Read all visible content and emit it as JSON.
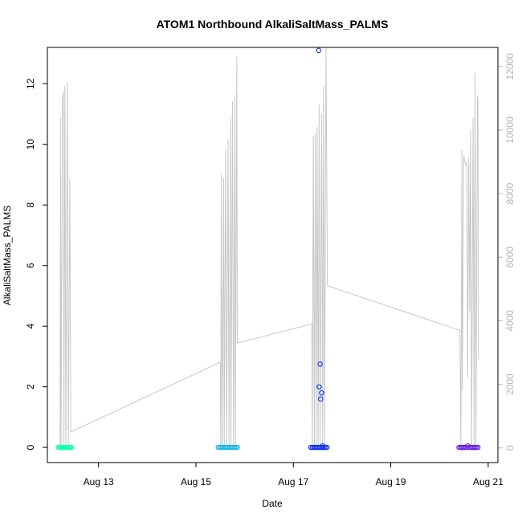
{
  "chart_data": {
    "type": "scatter",
    "title": "ATOM1 Northbound AlkaliSaltMass_PALMS",
    "xlabel": "Date",
    "ylabel": "AlkaliSaltMass_PALMS",
    "x_ticks": [
      "Aug 13",
      "Aug 15",
      "Aug 17",
      "Aug 19",
      "Aug 21"
    ],
    "x_tick_values": [
      13,
      15,
      17,
      19,
      21
    ],
    "xlim": [
      11.95,
      21.2
    ],
    "ylim": [
      -0.5,
      13.2
    ],
    "y_ticks": [
      0,
      2,
      4,
      6,
      8,
      10,
      12
    ],
    "y_right_ticks": [
      0,
      2000,
      4000,
      6000,
      8000,
      10000,
      12000
    ],
    "y_right_lim": [
      -460,
      12600
    ],
    "colors": {
      "line": "#c8c8c8",
      "right_axis": "#b4b4b4",
      "flight1": "#19ffb0",
      "flight2": "#19b4e6",
      "flight3": "#1432e6",
      "flight4": "#6a1ee6"
    },
    "secondary_line": {
      "name": "",
      "points": [
        [
          12.21,
          0
        ],
        [
          12.22,
          10400
        ],
        [
          12.23,
          0
        ],
        [
          12.26,
          11000
        ],
        [
          12.28,
          11200
        ],
        [
          12.29,
          0
        ],
        [
          12.31,
          11400
        ],
        [
          12.33,
          0
        ],
        [
          12.36,
          11500
        ],
        [
          12.38,
          0
        ],
        [
          12.41,
          8500
        ],
        [
          12.43,
          500
        ],
        [
          15.5,
          2700
        ],
        [
          15.51,
          0
        ],
        [
          15.52,
          8600
        ],
        [
          15.54,
          0
        ],
        [
          15.57,
          8500
        ],
        [
          15.58,
          0
        ],
        [
          15.61,
          9400
        ],
        [
          15.63,
          0
        ],
        [
          15.66,
          9700
        ],
        [
          15.68,
          0
        ],
        [
          15.71,
          10400
        ],
        [
          15.72,
          0
        ],
        [
          15.75,
          10900
        ],
        [
          15.77,
          0
        ],
        [
          15.8,
          11100
        ],
        [
          15.81,
          0
        ],
        [
          15.84,
          12300
        ],
        [
          15.85,
          3300
        ],
        [
          17.38,
          3900
        ],
        [
          17.39,
          0
        ],
        [
          17.41,
          9800
        ],
        [
          17.43,
          0
        ],
        [
          17.45,
          9900
        ],
        [
          17.47,
          0
        ],
        [
          17.49,
          10100
        ],
        [
          17.51,
          0
        ],
        [
          17.53,
          10800
        ],
        [
          17.55,
          0
        ],
        [
          17.58,
          10500
        ],
        [
          17.6,
          0
        ],
        [
          17.62,
          11400
        ],
        [
          17.64,
          0
        ],
        [
          17.67,
          12600
        ],
        [
          17.7,
          5100
        ],
        [
          20.42,
          3700
        ],
        [
          20.44,
          0
        ],
        [
          20.46,
          9400
        ],
        [
          20.47,
          1800
        ],
        [
          20.5,
          9200
        ],
        [
          20.52,
          9000
        ],
        [
          20.54,
          8900
        ],
        [
          20.56,
          9000
        ],
        [
          20.58,
          2200
        ],
        [
          20.6,
          9100
        ],
        [
          20.62,
          4300
        ],
        [
          20.64,
          10000
        ],
        [
          20.66,
          0
        ],
        [
          20.69,
          10400
        ],
        [
          20.71,
          0
        ],
        [
          20.73,
          11800
        ],
        [
          20.75,
          0
        ],
        [
          20.78,
          11100
        ],
        [
          20.79,
          10900
        ],
        [
          20.8,
          2800
        ]
      ]
    },
    "series": [
      {
        "flight": 1,
        "color": "#19ffb0",
        "x": [
          12.18,
          12.2,
          12.22,
          12.24,
          12.26,
          12.28,
          12.3,
          12.32,
          12.34,
          12.36,
          12.38,
          12.4,
          12.42,
          12.44
        ],
        "y": [
          0,
          0,
          0,
          0,
          0,
          0,
          0,
          0,
          0,
          0,
          0,
          0,
          0,
          0
        ]
      },
      {
        "flight": 2,
        "color": "#19b4e6",
        "x": [
          15.46,
          15.49,
          15.52,
          15.55,
          15.58,
          15.61,
          15.64,
          15.67,
          15.7,
          15.73,
          15.76,
          15.79,
          15.82,
          15.85
        ],
        "y": [
          0,
          0,
          0,
          0,
          0,
          0,
          0,
          0,
          0,
          0,
          0,
          0,
          0,
          0
        ]
      },
      {
        "flight": 3,
        "color": "#1432e6",
        "x": [
          17.36,
          17.39,
          17.42,
          17.45,
          17.48,
          17.51,
          17.54,
          17.57,
          17.6,
          17.63,
          17.66,
          17.69,
          17.52,
          17.55,
          17.53,
          17.58,
          17.56,
          17.6
        ],
        "y": [
          0,
          0,
          0,
          0,
          0,
          0,
          0,
          0,
          0,
          0,
          0,
          0,
          13.1,
          2.75,
          2.0,
          1.8,
          1.6,
          0.05
        ]
      },
      {
        "flight": 4,
        "color": "#6a1ee6",
        "x": [
          20.4,
          20.43,
          20.46,
          20.49,
          20.52,
          20.55,
          20.58,
          20.61,
          20.64,
          20.67,
          20.7,
          20.73,
          20.76,
          20.79
        ],
        "y": [
          0,
          0,
          0,
          0,
          0,
          0,
          0.05,
          0,
          0,
          0,
          0,
          0,
          0,
          0
        ]
      }
    ]
  }
}
